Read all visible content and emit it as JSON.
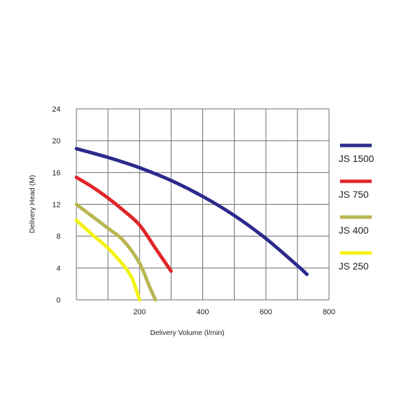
{
  "chart_data": {
    "type": "line",
    "title": "",
    "xlabel": "Delivery Volume (l/min)",
    "ylabel": "Delivery Head (M)",
    "xlim": [
      0,
      800
    ],
    "ylim": [
      0,
      24
    ],
    "x_ticks": [
      "200",
      "400",
      "600",
      "800"
    ],
    "y_ticks": [
      "0",
      "4",
      "8",
      "12",
      "16",
      "20",
      "24"
    ],
    "grid": true,
    "legend_position": "right",
    "series": [
      {
        "name": "JS 1500",
        "color": "#2b2a8c",
        "points": [
          [
            0,
            19.0
          ],
          [
            100,
            17.9
          ],
          [
            200,
            16.6
          ],
          [
            300,
            15.0
          ],
          [
            400,
            13.0
          ],
          [
            500,
            10.6
          ],
          [
            600,
            7.7
          ],
          [
            700,
            4.3
          ],
          [
            730,
            3.2
          ]
        ]
      },
      {
        "name": "JS 750",
        "color": "#e0262a",
        "points": [
          [
            0,
            15.4
          ],
          [
            50,
            14.2
          ],
          [
            100,
            12.8
          ],
          [
            150,
            11.2
          ],
          [
            200,
            9.4
          ],
          [
            250,
            6.5
          ],
          [
            300,
            3.6
          ]
        ]
      },
      {
        "name": "JS 400",
        "color": "#b8b650",
        "points": [
          [
            0,
            12.0
          ],
          [
            50,
            10.5
          ],
          [
            100,
            9.0
          ],
          [
            150,
            7.4
          ],
          [
            200,
            4.6
          ],
          [
            230,
            1.8
          ],
          [
            250,
            0
          ]
        ]
      },
      {
        "name": "JS 250",
        "color": "#f4f214",
        "points": [
          [
            0,
            10.0
          ],
          [
            50,
            8.2
          ],
          [
            100,
            6.5
          ],
          [
            150,
            4.3
          ],
          [
            175,
            2.8
          ],
          [
            190,
            1.2
          ],
          [
            200,
            0
          ]
        ]
      }
    ]
  }
}
